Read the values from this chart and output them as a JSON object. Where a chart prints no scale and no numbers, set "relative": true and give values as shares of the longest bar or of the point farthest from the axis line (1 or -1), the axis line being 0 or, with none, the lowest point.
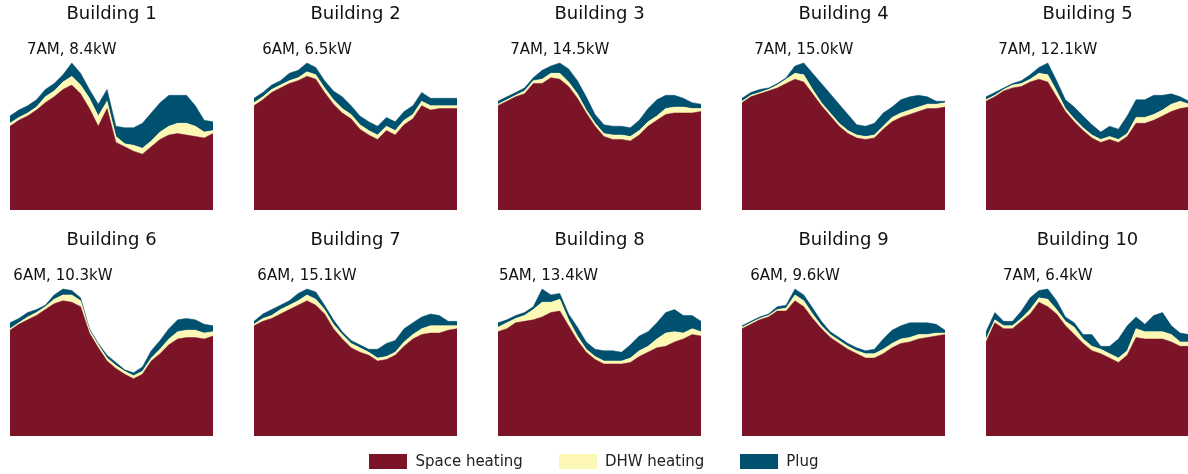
{
  "chart_data": [
    {
      "type": "area",
      "stacked": true,
      "relative": true,
      "title": "Building 1",
      "categories": [
        null,
        null,
        null,
        null,
        null,
        null,
        null,
        null,
        null,
        null,
        null,
        null,
        null,
        null,
        null,
        null,
        null,
        null,
        null,
        null,
        null,
        null,
        null,
        null
      ],
      "annotations": [
        "7AM, 8.4kW"
      ],
      "series": [
        {
          "color": "#7b1427",
          "values": [
            0.57,
            0.61,
            0.64,
            0.68,
            0.73,
            0.77,
            0.82,
            0.85,
            0.79,
            0.69,
            0.57,
            0.69,
            0.46,
            0.43,
            0.4,
            0.38,
            0.43,
            0.48,
            0.51,
            0.52,
            0.51,
            0.5,
            0.49,
            0.52
          ]
        },
        {
          "color": "#fdf8b6",
          "values": [
            0.02,
            0.02,
            0.02,
            0.02,
            0.04,
            0.04,
            0.05,
            0.06,
            0.06,
            0.07,
            0.07,
            0.05,
            0.04,
            0.02,
            0.04,
            0.04,
            0.04,
            0.05,
            0.06,
            0.07,
            0.08,
            0.07,
            0.04,
            0.02
          ]
        },
        {
          "color": "#00506f",
          "values": [
            0.05,
            0.05,
            0.05,
            0.05,
            0.05,
            0.05,
            0.05,
            0.09,
            0.08,
            0.06,
            0.08,
            0.08,
            0.07,
            0.11,
            0.12,
            0.17,
            0.19,
            0.2,
            0.21,
            0.19,
            0.19,
            0.14,
            0.08,
            0.06
          ]
        }
      ]
    },
    {
      "type": "area",
      "stacked": true,
      "relative": true,
      "title": "Building 2",
      "categories": [
        null,
        null,
        null,
        null,
        null,
        null,
        null,
        null,
        null,
        null,
        null,
        null,
        null,
        null,
        null,
        null,
        null,
        null,
        null,
        null,
        null,
        null,
        null,
        null
      ],
      "annotations": [
        "6AM, 6.5kW"
      ],
      "series": [
        {
          "color": "#7b1427",
          "values": [
            0.71,
            0.75,
            0.8,
            0.83,
            0.86,
            0.88,
            0.91,
            0.89,
            0.8,
            0.72,
            0.66,
            0.62,
            0.55,
            0.51,
            0.48,
            0.54,
            0.51,
            0.58,
            0.62,
            0.71,
            0.68,
            0.69,
            0.69,
            0.69
          ]
        },
        {
          "color": "#fdf8b6",
          "values": [
            0.02,
            0.02,
            0.02,
            0.02,
            0.02,
            0.02,
            0.03,
            0.03,
            0.03,
            0.03,
            0.03,
            0.03,
            0.03,
            0.03,
            0.03,
            0.03,
            0.03,
            0.03,
            0.03,
            0.03,
            0.03,
            0.02,
            0.02,
            0.02
          ]
        },
        {
          "color": "#00506f",
          "values": [
            0.03,
            0.03,
            0.03,
            0.03,
            0.05,
            0.05,
            0.06,
            0.05,
            0.05,
            0.06,
            0.08,
            0.06,
            0.06,
            0.06,
            0.06,
            0.06,
            0.06,
            0.06,
            0.06,
            0.06,
            0.05,
            0.05,
            0.05,
            0.05
          ]
        }
      ]
    },
    {
      "type": "area",
      "stacked": true,
      "relative": true,
      "title": "Building 3",
      "categories": [
        null,
        null,
        null,
        null,
        null,
        null,
        null,
        null,
        null,
        null,
        null,
        null,
        null,
        null,
        null,
        null,
        null,
        null,
        null,
        null,
        null,
        null,
        null,
        null
      ],
      "annotations": [
        "7AM, 14.5kW"
      ],
      "series": [
        {
          "color": "#7b1427",
          "values": [
            0.71,
            0.74,
            0.77,
            0.79,
            0.86,
            0.86,
            0.9,
            0.89,
            0.84,
            0.76,
            0.66,
            0.57,
            0.5,
            0.48,
            0.48,
            0.47,
            0.51,
            0.57,
            0.61,
            0.65,
            0.66,
            0.66,
            0.66,
            0.67
          ]
        },
        {
          "color": "#fdf8b6",
          "values": [
            0.01,
            0.01,
            0.01,
            0.02,
            0.02,
            0.03,
            0.03,
            0.04,
            0.03,
            0.03,
            0.02,
            0.02,
            0.02,
            0.03,
            0.03,
            0.03,
            0.03,
            0.03,
            0.03,
            0.04,
            0.04,
            0.04,
            0.03,
            0.02
          ]
        },
        {
          "color": "#00506f",
          "values": [
            0.02,
            0.02,
            0.02,
            0.02,
            0.02,
            0.06,
            0.05,
            0.07,
            0.09,
            0.09,
            0.09,
            0.06,
            0.06,
            0.06,
            0.06,
            0.06,
            0.07,
            0.09,
            0.11,
            0.09,
            0.08,
            0.06,
            0.04,
            0.03
          ]
        }
      ]
    },
    {
      "type": "area",
      "stacked": true,
      "relative": true,
      "title": "Building 4",
      "categories": [
        null,
        null,
        null,
        null,
        null,
        null,
        null,
        null,
        null,
        null,
        null,
        null,
        null,
        null,
        null,
        null,
        null,
        null,
        null,
        null,
        null,
        null,
        null,
        null
      ],
      "annotations": [
        "7AM, 15.0kW"
      ],
      "series": [
        {
          "color": "#7b1427",
          "values": [
            0.73,
            0.77,
            0.79,
            0.81,
            0.83,
            0.86,
            0.89,
            0.87,
            0.79,
            0.71,
            0.64,
            0.57,
            0.52,
            0.49,
            0.48,
            0.49,
            0.55,
            0.6,
            0.63,
            0.65,
            0.67,
            0.69,
            0.69,
            0.7
          ]
        },
        {
          "color": "#fdf8b6",
          "values": [
            0.01,
            0.01,
            0.01,
            0.01,
            0.02,
            0.03,
            0.04,
            0.05,
            0.03,
            0.02,
            0.02,
            0.02,
            0.02,
            0.02,
            0.02,
            0.02,
            0.02,
            0.03,
            0.03,
            0.03,
            0.03,
            0.03,
            0.03,
            0.03
          ]
        },
        {
          "color": "#00506f",
          "values": [
            0.02,
            0.02,
            0.02,
            0.01,
            0.01,
            0.01,
            0.05,
            0.08,
            0.11,
            0.13,
            0.13,
            0.13,
            0.11,
            0.07,
            0.07,
            0.08,
            0.09,
            0.07,
            0.09,
            0.09,
            0.08,
            0.05,
            0.02,
            0.01
          ]
        }
      ]
    },
    {
      "type": "area",
      "stacked": true,
      "relative": true,
      "title": "Building 5",
      "categories": [
        null,
        null,
        null,
        null,
        null,
        null,
        null,
        null,
        null,
        null,
        null,
        null,
        null,
        null,
        null,
        null,
        null,
        null,
        null,
        null,
        null,
        null,
        null,
        null
      ],
      "annotations": [
        "7AM, 12.1kW"
      ],
      "series": [
        {
          "color": "#7b1427",
          "values": [
            0.74,
            0.77,
            0.81,
            0.83,
            0.84,
            0.87,
            0.89,
            0.87,
            0.77,
            0.67,
            0.6,
            0.54,
            0.49,
            0.46,
            0.48,
            0.46,
            0.5,
            0.59,
            0.59,
            0.61,
            0.64,
            0.67,
            0.69,
            0.7
          ]
        },
        {
          "color": "#fdf8b6",
          "values": [
            0.01,
            0.01,
            0.01,
            0.02,
            0.02,
            0.02,
            0.04,
            0.05,
            0.04,
            0.02,
            0.02,
            0.02,
            0.02,
            0.02,
            0.02,
            0.02,
            0.02,
            0.04,
            0.04,
            0.04,
            0.04,
            0.05,
            0.05,
            0.02
          ]
        },
        {
          "color": "#00506f",
          "values": [
            0.02,
            0.02,
            0.01,
            0.01,
            0.02,
            0.03,
            0.04,
            0.08,
            0.07,
            0.06,
            0.08,
            0.08,
            0.07,
            0.05,
            0.07,
            0.07,
            0.12,
            0.12,
            0.12,
            0.13,
            0.1,
            0.07,
            0.03,
            0.02
          ]
        }
      ]
    },
    {
      "type": "area",
      "stacked": true,
      "relative": true,
      "title": "Building 6",
      "categories": [
        null,
        null,
        null,
        null,
        null,
        null,
        null,
        null,
        null,
        null,
        null,
        null,
        null,
        null,
        null,
        null,
        null,
        null,
        null,
        null,
        null,
        null,
        null,
        null
      ],
      "annotations": [
        "6AM, 10.3kW"
      ],
      "series": [
        {
          "color": "#7b1427",
          "values": [
            0.72,
            0.76,
            0.79,
            0.82,
            0.86,
            0.9,
            0.92,
            0.91,
            0.88,
            0.7,
            0.6,
            0.51,
            0.46,
            0.42,
            0.39,
            0.42,
            0.51,
            0.56,
            0.62,
            0.66,
            0.67,
            0.67,
            0.66,
            0.68
          ]
        },
        {
          "color": "#fdf8b6",
          "values": [
            0.01,
            0.01,
            0.02,
            0.02,
            0.02,
            0.03,
            0.04,
            0.05,
            0.04,
            0.02,
            0.02,
            0.02,
            0.02,
            0.02,
            0.02,
            0.02,
            0.02,
            0.03,
            0.04,
            0.05,
            0.05,
            0.05,
            0.04,
            0.03
          ]
        },
        {
          "color": "#00506f",
          "values": [
            0.04,
            0.03,
            0.03,
            0.02,
            0.01,
            0.03,
            0.04,
            0.03,
            0.02,
            0.01,
            0.01,
            0.02,
            0.02,
            0.01,
            0.02,
            0.03,
            0.05,
            0.06,
            0.07,
            0.08,
            0.08,
            0.07,
            0.06,
            0.04
          ]
        }
      ]
    },
    {
      "type": "area",
      "stacked": true,
      "relative": true,
      "title": "Building 7",
      "categories": [
        null,
        null,
        null,
        null,
        null,
        null,
        null,
        null,
        null,
        null,
        null,
        null,
        null,
        null,
        null,
        null,
        null,
        null,
        null,
        null,
        null,
        null,
        null,
        null
      ],
      "annotations": [
        "6AM, 15.1kW"
      ],
      "series": [
        {
          "color": "#7b1427",
          "values": [
            0.75,
            0.78,
            0.8,
            0.83,
            0.86,
            0.89,
            0.92,
            0.89,
            0.83,
            0.73,
            0.66,
            0.6,
            0.57,
            0.55,
            0.51,
            0.52,
            0.55,
            0.61,
            0.66,
            0.69,
            0.7,
            0.7,
            0.72,
            0.73
          ]
        },
        {
          "color": "#fdf8b6",
          "values": [
            0.01,
            0.02,
            0.02,
            0.03,
            0.03,
            0.03,
            0.04,
            0.04,
            0.03,
            0.03,
            0.03,
            0.03,
            0.03,
            0.02,
            0.02,
            0.02,
            0.02,
            0.03,
            0.03,
            0.04,
            0.05,
            0.05,
            0.03,
            0.02
          ]
        },
        {
          "color": "#00506f",
          "values": [
            0.02,
            0.03,
            0.04,
            0.03,
            0.03,
            0.05,
            0.04,
            0.05,
            0.03,
            0.03,
            0.02,
            0.02,
            0.02,
            0.02,
            0.06,
            0.09,
            0.08,
            0.09,
            0.08,
            0.08,
            0.08,
            0.07,
            0.03,
            0.03
          ]
        }
      ]
    },
    {
      "type": "area",
      "stacked": true,
      "relative": true,
      "title": "Building 8",
      "categories": [
        null,
        null,
        null,
        null,
        null,
        null,
        null,
        null,
        null,
        null,
        null,
        null,
        null,
        null,
        null,
        null,
        null,
        null,
        null,
        null,
        null,
        null,
        null,
        null
      ],
      "legend": "bottom",
      "annotations": [
        "5AM, 13.4kW"
      ],
      "series": [
        {
          "name": "Space heating",
          "color": "#7b1427",
          "values": [
            0.71,
            0.73,
            0.77,
            0.78,
            0.79,
            0.81,
            0.84,
            0.85,
            0.75,
            0.65,
            0.57,
            0.52,
            0.49,
            0.49,
            0.49,
            0.5,
            0.54,
            0.57,
            0.6,
            0.61,
            0.64,
            0.66,
            0.69,
            0.68
          ]
        },
        {
          "name": "DHW heating",
          "color": "#fdf8b6",
          "values": [
            0.03,
            0.04,
            0.03,
            0.04,
            0.07,
            0.1,
            0.07,
            0.08,
            0.04,
            0.03,
            0.02,
            0.02,
            0.02,
            0.02,
            0.02,
            0.03,
            0.04,
            0.04,
            0.06,
            0.09,
            0.07,
            0.04,
            0.04,
            0.03
          ]
        },
        {
          "name": "Plug",
          "color": "#00506f",
          "values": [
            0.03,
            0.02,
            0.02,
            0.02,
            0.02,
            0.09,
            0.05,
            0.04,
            0.04,
            0.06,
            0.05,
            0.05,
            0.07,
            0.07,
            0.06,
            0.09,
            0.1,
            0.1,
            0.11,
            0.14,
            0.15,
            0.12,
            0.09,
            0.07
          ]
        }
      ]
    },
    {
      "type": "area",
      "stacked": true,
      "relative": true,
      "title": "Building 9",
      "categories": [
        null,
        null,
        null,
        null,
        null,
        null,
        null,
        null,
        null,
        null,
        null,
        null,
        null,
        null,
        null,
        null,
        null,
        null,
        null,
        null,
        null,
        null,
        null,
        null
      ],
      "annotations": [
        "6AM, 9.6kW"
      ],
      "series": [
        {
          "color": "#7b1427",
          "values": [
            0.73,
            0.76,
            0.79,
            0.81,
            0.85,
            0.85,
            0.92,
            0.88,
            0.8,
            0.73,
            0.67,
            0.63,
            0.59,
            0.56,
            0.53,
            0.53,
            0.56,
            0.6,
            0.63,
            0.64,
            0.66,
            0.67,
            0.68,
            0.69
          ]
        },
        {
          "color": "#fdf8b6",
          "values": [
            0.01,
            0.01,
            0.01,
            0.01,
            0.01,
            0.02,
            0.04,
            0.04,
            0.03,
            0.02,
            0.02,
            0.02,
            0.02,
            0.02,
            0.03,
            0.03,
            0.03,
            0.03,
            0.03,
            0.03,
            0.03,
            0.02,
            0.02,
            0.01
          ]
        },
        {
          "color": "#00506f",
          "values": [
            0.01,
            0.01,
            0.01,
            0.01,
            0.02,
            0.02,
            0.04,
            0.04,
            0.04,
            0.03,
            0.02,
            0.02,
            0.02,
            0.02,
            0.02,
            0.03,
            0.07,
            0.09,
            0.09,
            0.1,
            0.08,
            0.08,
            0.06,
            0.02
          ]
        }
      ]
    },
    {
      "type": "area",
      "stacked": true,
      "relative": true,
      "title": "Building 10",
      "categories": [
        null,
        null,
        null,
        null,
        null,
        null,
        null,
        null,
        null,
        null,
        null,
        null,
        null,
        null,
        null,
        null,
        null,
        null,
        null,
        null,
        null,
        null,
        null,
        null
      ],
      "annotations": [
        "7AM, 6.4kW"
      ],
      "series": [
        {
          "color": "#7b1427",
          "values": [
            0.64,
            0.77,
            0.73,
            0.73,
            0.78,
            0.83,
            0.91,
            0.88,
            0.83,
            0.75,
            0.69,
            0.63,
            0.58,
            0.56,
            0.53,
            0.5,
            0.55,
            0.67,
            0.66,
            0.66,
            0.66,
            0.64,
            0.61,
            0.61
          ]
        },
        {
          "color": "#fdf8b6",
          "values": [
            0.02,
            0.02,
            0.02,
            0.02,
            0.02,
            0.03,
            0.03,
            0.05,
            0.03,
            0.03,
            0.05,
            0.03,
            0.03,
            0.03,
            0.03,
            0.03,
            0.03,
            0.06,
            0.05,
            0.05,
            0.05,
            0.05,
            0.03,
            0.03
          ]
        },
        {
          "color": "#00506f",
          "values": [
            0.05,
            0.05,
            0.03,
            0.03,
            0.05,
            0.08,
            0.05,
            0.07,
            0.06,
            0.03,
            0.03,
            0.03,
            0.08,
            0.02,
            0.05,
            0.13,
            0.17,
            0.08,
            0.05,
            0.11,
            0.13,
            0.06,
            0.06,
            0.05
          ]
        }
      ]
    }
  ]
}
